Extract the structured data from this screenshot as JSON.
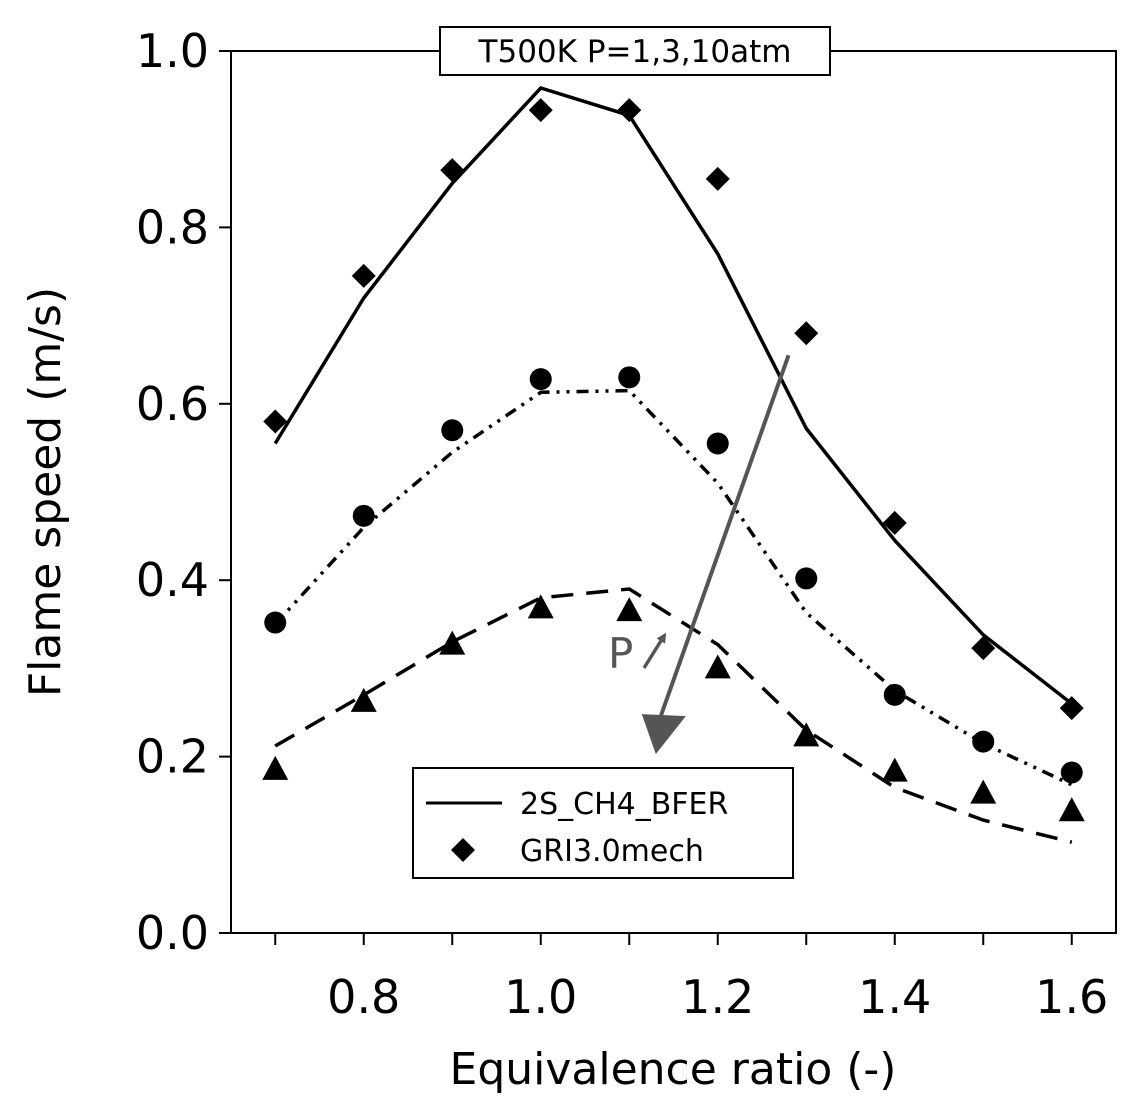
{
  "chart_data": {
    "type": "line",
    "title": "T500K P=1,3,10atm",
    "xlabel": "Equivalence ratio (-)",
    "ylabel": "Flame speed (m/s)",
    "xlim": [
      0.65,
      1.65
    ],
    "ylim": [
      0.0,
      1.0
    ],
    "xticks": [
      "0.8",
      "1.0",
      "1.2",
      "1.4",
      "1.6"
    ],
    "yticks": [
      "0.0",
      "0.2",
      "0.4",
      "0.6",
      "0.8",
      "1.0"
    ],
    "x": [
      0.7,
      0.8,
      0.9,
      1.0,
      1.1,
      1.2,
      1.3,
      1.4,
      1.5,
      1.6
    ],
    "legend": {
      "position": "lower-center",
      "entries": [
        {
          "label": "2S_CH4_BFER",
          "marker": "line"
        },
        {
          "label": "GRI3.0mech",
          "marker": "diamond"
        }
      ]
    },
    "series": [
      {
        "line_values": [
          0.555,
          0.72,
          0.85,
          0.958,
          0.927,
          0.77,
          0.572,
          0.445,
          0.338,
          0.26
        ],
        "point_values": [
          0.58,
          0.745,
          0.865,
          0.933,
          0.933,
          0.855,
          0.68,
          0.465,
          0.323,
          0.255
        ],
        "line_style": "solid",
        "marker": "diamond"
      },
      {
        "line_values": [
          0.35,
          0.46,
          0.545,
          0.613,
          0.615,
          0.51,
          0.363,
          0.275,
          0.215,
          0.168
        ],
        "point_values": [
          0.352,
          0.473,
          0.57,
          0.628,
          0.63,
          0.555,
          0.402,
          0.27,
          0.217,
          0.182
        ],
        "line_style": "dash-dot-dot",
        "marker": "circle"
      },
      {
        "line_values": [
          0.212,
          0.27,
          0.33,
          0.38,
          0.39,
          0.327,
          0.23,
          0.165,
          0.128,
          0.103
        ],
        "point_values": [
          0.185,
          0.262,
          0.327,
          0.368,
          0.365,
          0.3,
          0.223,
          0.183,
          0.158,
          0.138
        ],
        "line_style": "dashed",
        "marker": "triangle"
      }
    ],
    "annotations": [
      {
        "text": "P",
        "arrow": {
          "from": [
            1.28,
            0.655
          ],
          "to": [
            1.13,
            0.23
          ]
        }
      }
    ]
  }
}
